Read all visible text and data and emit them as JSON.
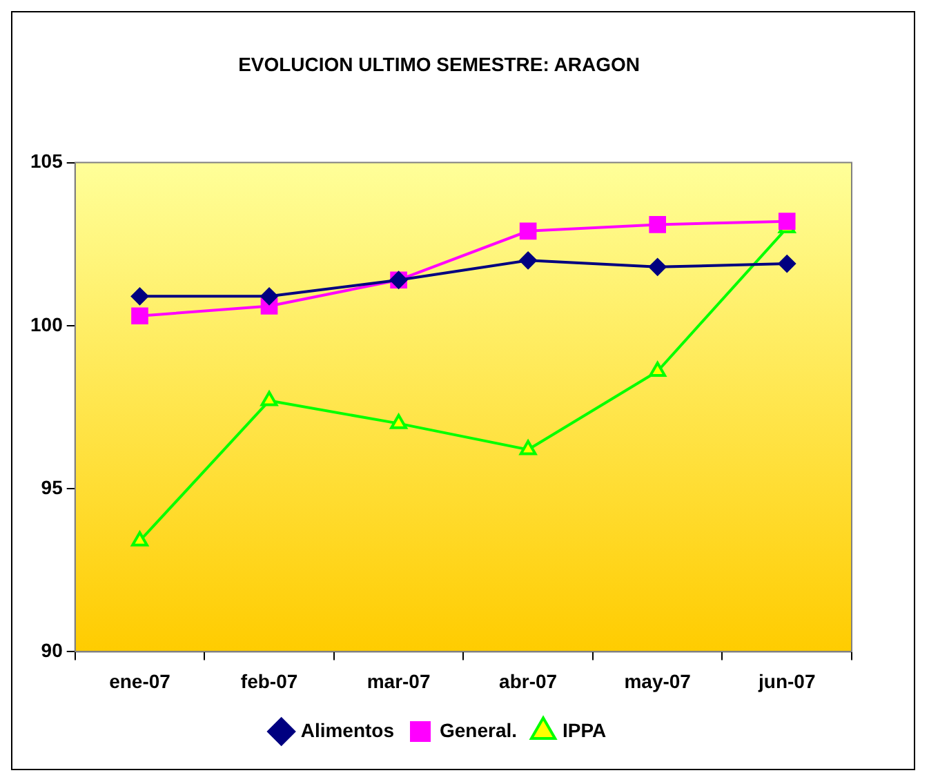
{
  "chart_data": {
    "type": "line",
    "title": "EVOLUCION ULTIMO SEMESTRE: ARAGON",
    "categories": [
      "ene-07",
      "feb-07",
      "mar-07",
      "abr-07",
      "may-07",
      "jun-07"
    ],
    "series": [
      {
        "name": "Alimentos",
        "color": "#000080",
        "marker": "diamond",
        "values": [
          100.9,
          100.9,
          101.4,
          102.0,
          101.8,
          101.9
        ]
      },
      {
        "name": "General.",
        "color": "#ff00ff",
        "marker": "square",
        "values": [
          100.3,
          100.6,
          101.4,
          102.9,
          103.1,
          103.2
        ]
      },
      {
        "name": "IPPA",
        "color": "#00ff00",
        "marker": "triangle",
        "values": [
          93.4,
          97.7,
          97.0,
          96.2,
          98.6,
          103.0
        ]
      }
    ],
    "ylim": [
      90,
      105
    ],
    "yticks": [
      90,
      95,
      100,
      105
    ],
    "grid": false,
    "legend": "bottom",
    "line_style": "solid"
  }
}
